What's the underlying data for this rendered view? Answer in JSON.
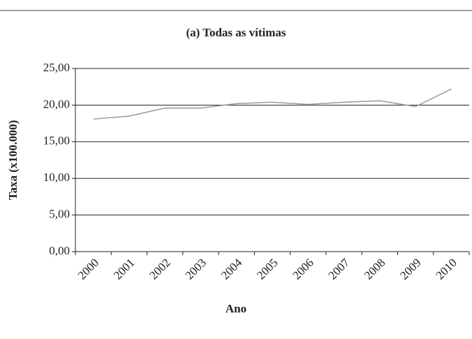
{
  "chart_data": {
    "type": "line",
    "title": "(a) Todas as vítimas",
    "x_label": "Ano",
    "y_label": "Taxa (x100.000)",
    "categories": [
      "2000",
      "2001",
      "2002",
      "2003",
      "2004",
      "2005",
      "2006",
      "2007",
      "2008",
      "2009",
      "2010"
    ],
    "values": [
      18.1,
      18.5,
      19.6,
      19.6,
      20.2,
      20.4,
      20.1,
      20.4,
      20.6,
      19.8,
      22.2
    ],
    "color": "#999999",
    "ylim": [
      0,
      25
    ],
    "yticks": [
      {
        "value": 0,
        "label": "0,00"
      },
      {
        "value": 5,
        "label": "5,00"
      },
      {
        "value": 10,
        "label": "10,00"
      },
      {
        "value": 15,
        "label": "15,00"
      },
      {
        "value": 20,
        "label": "20,00"
      },
      {
        "value": 25,
        "label": "25,00"
      }
    ],
    "grid": true
  }
}
